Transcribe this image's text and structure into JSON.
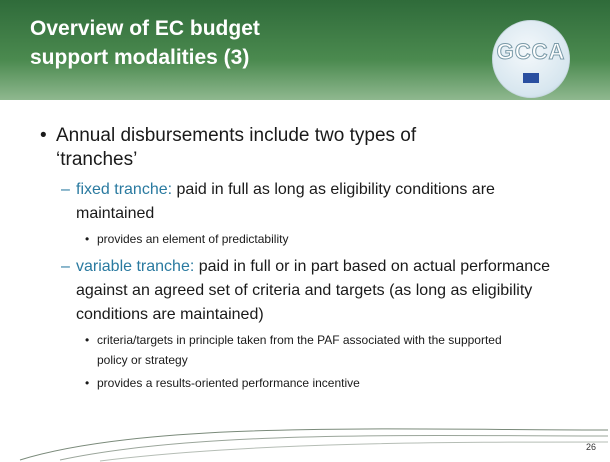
{
  "header": {
    "title": "Overview of EC budget support modalities (3)",
    "logo": "GCCA"
  },
  "body": {
    "bullet": "Annual disbursements include two types of ‘tranches’",
    "items": [
      {
        "label": "fixed tranche:",
        "text": "paid in full as long as eligibility conditions are maintained",
        "subitems": [
          "provides an element of predictability"
        ]
      },
      {
        "label": "variable tranche:",
        "text": "paid in full or in part based on actual performance against an agreed set of criteria and targets (as long as eligibility conditions are maintained)",
        "subitems": [
          "criteria/targets in principle taken from the PAF associated with the supported policy or strategy",
          "provides a results-oriented performance incentive"
        ]
      }
    ]
  },
  "footer": {
    "page_number": "26"
  }
}
